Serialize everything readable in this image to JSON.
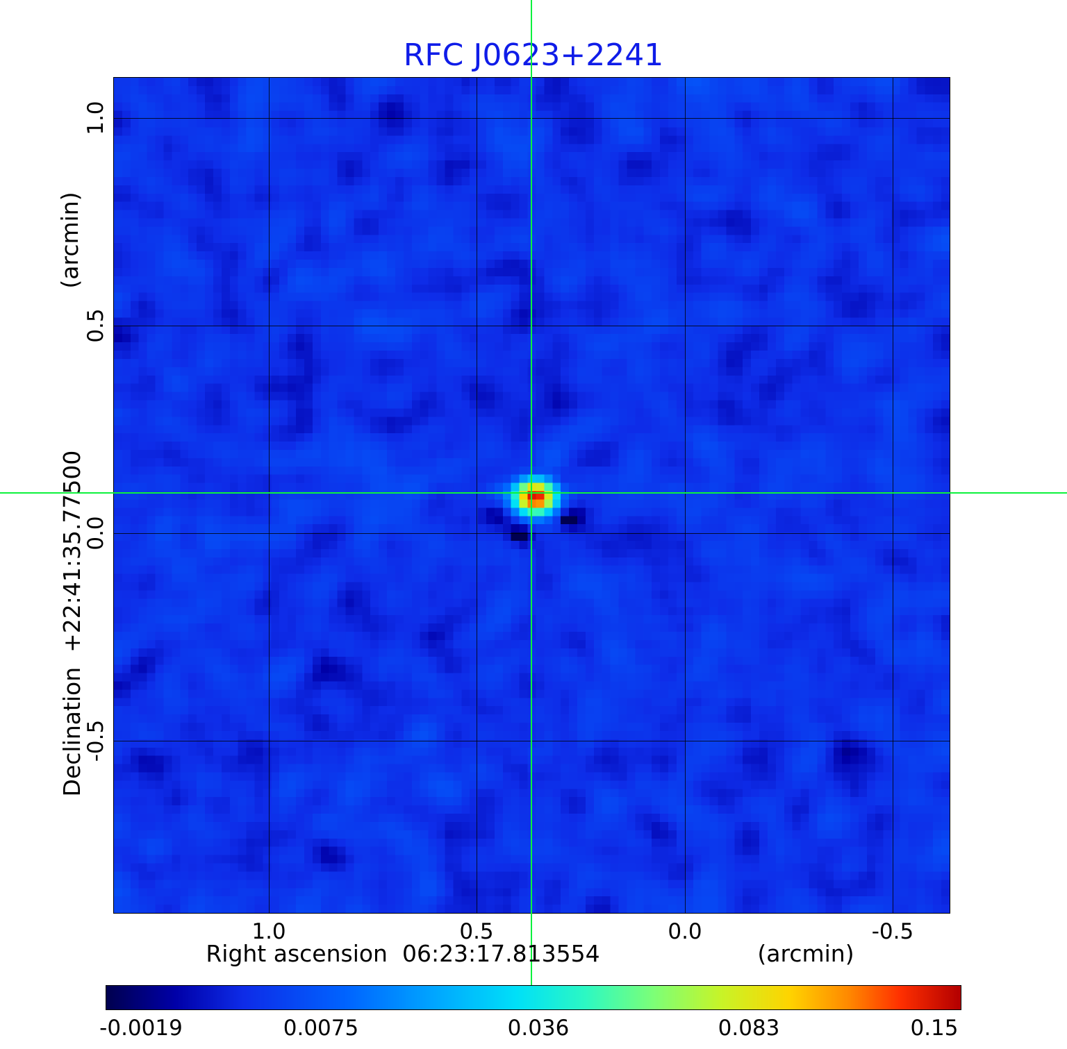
{
  "title": "RFC J0623+2241",
  "chart_data": {
    "type": "heatmap",
    "title": "RFC J0623+2241",
    "title_color": "#0f1ce8",
    "xlabel": "Right ascension  06:23:17.813554",
    "xlabel_unit": "(arcmin)",
    "ylabel": "Declination  +22:41:35.77500",
    "ylabel_unit": "(arcmin)",
    "x_ticks": [
      "1.0",
      "0.5",
      "0.0",
      "-0.5"
    ],
    "y_ticks": [
      "1.0",
      "0.5",
      "0.0",
      "-0.5"
    ],
    "x_range_arcmin": [
      1.37,
      -0.64
    ],
    "y_range_arcmin": [
      -0.92,
      1.1
    ],
    "grid": true,
    "crosshair": {
      "ra_offset_arcmin": 0.37,
      "dec_offset_arcmin": 0.1,
      "color": "#0cf23c"
    },
    "source": {
      "name": "RFC J0623+2241",
      "peak_value": 0.15,
      "ra_offset_arcmin": 0.37,
      "dec_offset_arcmin": 0.1
    },
    "colorbar": {
      "ticks": [
        "-0.0019",
        "0.0075",
        "0.036",
        "0.083",
        "0.15"
      ],
      "vmin": -0.0019,
      "vmax": 0.15,
      "scale": "sqrt",
      "orientation": "horizontal"
    },
    "colormap": {
      "name": "rainbow",
      "stops": [
        [
          0.0,
          "#000050"
        ],
        [
          0.08,
          "#0000a8"
        ],
        [
          0.16,
          "#0e2ce8"
        ],
        [
          0.28,
          "#0064ff"
        ],
        [
          0.38,
          "#00a4ff"
        ],
        [
          0.48,
          "#00e0f8"
        ],
        [
          0.56,
          "#2cf8c4"
        ],
        [
          0.64,
          "#7cff78"
        ],
        [
          0.72,
          "#c8f428"
        ],
        [
          0.8,
          "#ffd400"
        ],
        [
          0.87,
          "#ff8800"
        ],
        [
          0.93,
          "#ff3000"
        ],
        [
          1.0,
          "#b40000"
        ]
      ]
    },
    "background_value": 0.0026,
    "noise_amplitude": 0.0012,
    "grid_cells": 101,
    "features": [
      {
        "x": 50.4,
        "y": 50.2,
        "amp": 0.147,
        "sx": 1.5,
        "sy": 1.2,
        "kind": "source-peak"
      },
      {
        "x": 48.8,
        "y": 54.8,
        "amp": -0.007,
        "sx": 1.0,
        "sy": 0.9,
        "kind": "negative-sidelobe"
      },
      {
        "x": 54.3,
        "y": 53.0,
        "amp": -0.0045,
        "sx": 1.2,
        "sy": 1.0,
        "kind": "negative-sidelobe"
      },
      {
        "x": 45.0,
        "y": 52.3,
        "amp": -0.003,
        "sx": 1.1,
        "sy": 1.0,
        "kind": "negative-sidelobe"
      },
      {
        "x": 52.6,
        "y": 45.6,
        "amp": 0.004,
        "sx": 1.5,
        "sy": 1.2,
        "kind": "positive-sidelobe"
      },
      {
        "x": 46.2,
        "y": 49.3,
        "amp": 0.0035,
        "sx": 1.0,
        "sy": 1.0,
        "kind": "positive-sidelobe"
      },
      {
        "x": 57.0,
        "y": 47.5,
        "amp": 0.002,
        "sx": 1.5,
        "sy": 1.2,
        "kind": "positive-sidelobe"
      }
    ]
  }
}
